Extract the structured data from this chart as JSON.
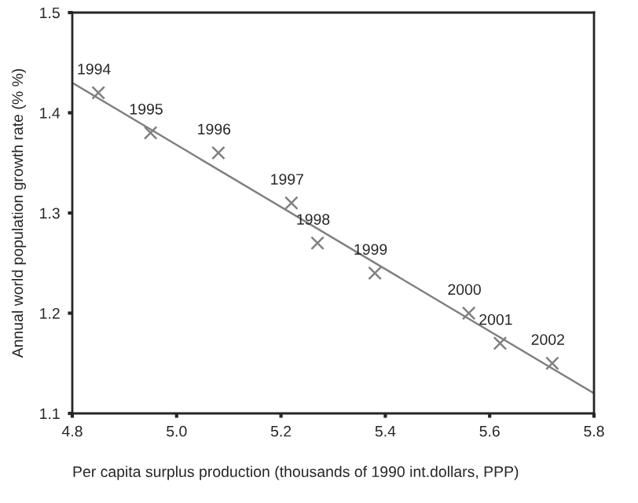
{
  "chart_data": {
    "type": "scatter",
    "xlabel": "Per capita surplus production (thousands of 1990 int.dollars, PPP)",
    "ylabel": "Annual world population growth rate (% %)",
    "series": [
      {
        "color": "#808080",
        "marker": "cross",
        "x": [
          4.85,
          4.95,
          5.08,
          5.22,
          5.27,
          5.38,
          5.56,
          5.62,
          5.72
        ],
        "values": [
          1.42,
          1.38,
          1.36,
          1.31,
          1.27,
          1.24,
          1.2,
          1.17,
          1.15
        ]
      },
      {
        "type": "line",
        "color": "#808080",
        "line_style": "solid",
        "x": [
          4.8,
          5.8
        ],
        "values": [
          1.43,
          1.12
        ]
      }
    ],
    "annotations": [
      {
        "text": "1994",
        "x": 4.85,
        "y": 1.42
      },
      {
        "text": "1995",
        "x": 4.95,
        "y": 1.38
      },
      {
        "text": "1996",
        "x": 5.08,
        "y": 1.36
      },
      {
        "text": "1997",
        "x": 5.22,
        "y": 1.31
      },
      {
        "text": "1998",
        "x": 5.27,
        "y": 1.27
      },
      {
        "text": "1999",
        "x": 5.38,
        "y": 1.24
      },
      {
        "text": "2000",
        "x": 5.56,
        "y": 1.2
      },
      {
        "text": "2001",
        "x": 5.62,
        "y": 1.17
      },
      {
        "text": "2002",
        "x": 5.72,
        "y": 1.15
      }
    ],
    "xlim": [
      4.8,
      5.8
    ],
    "xticks": [
      4.8,
      {
        "value": 5.0,
        "label": "5.0"
      },
      5.2,
      5.4,
      5.6,
      5.8
    ],
    "ylim": [
      1.1,
      1.5
    ],
    "yticks": [
      1.1,
      1.2,
      1.3,
      1.4,
      1.5
    ],
    "grid": false,
    "legend": false
  }
}
